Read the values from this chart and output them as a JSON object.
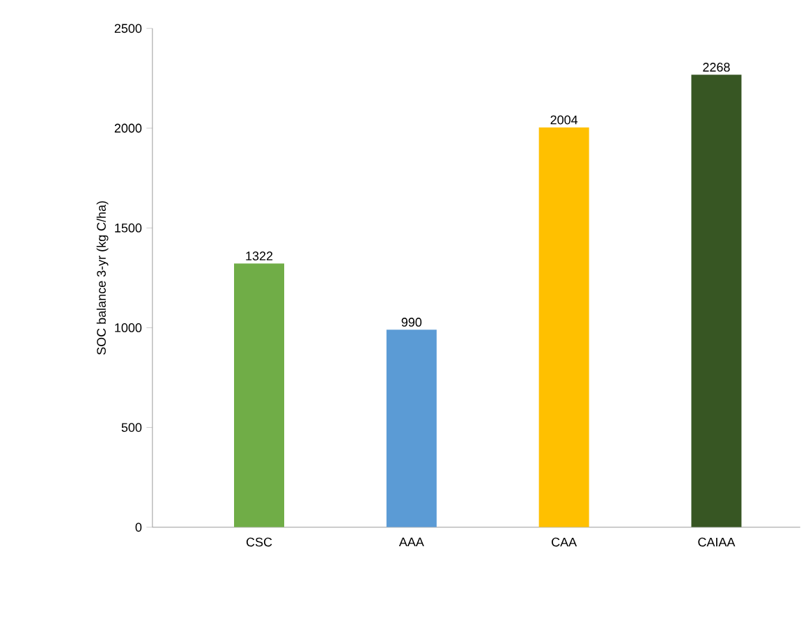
{
  "chart_data": {
    "type": "bar",
    "ylabel": "SOC balance 3-yr (kg C/ha)",
    "categories": [
      "CSC",
      "AAA",
      "CAA",
      "CAIAA"
    ],
    "values": [
      1322,
      990,
      2004,
      2268
    ],
    "colors": [
      "#70ad47",
      "#5b9bd5",
      "#ffc000",
      "#375623"
    ],
    "ylim": [
      0,
      2500
    ],
    "yticks": [
      0,
      500,
      1000,
      1500,
      2000,
      2500
    ],
    "data_labels": true,
    "grid": false
  }
}
